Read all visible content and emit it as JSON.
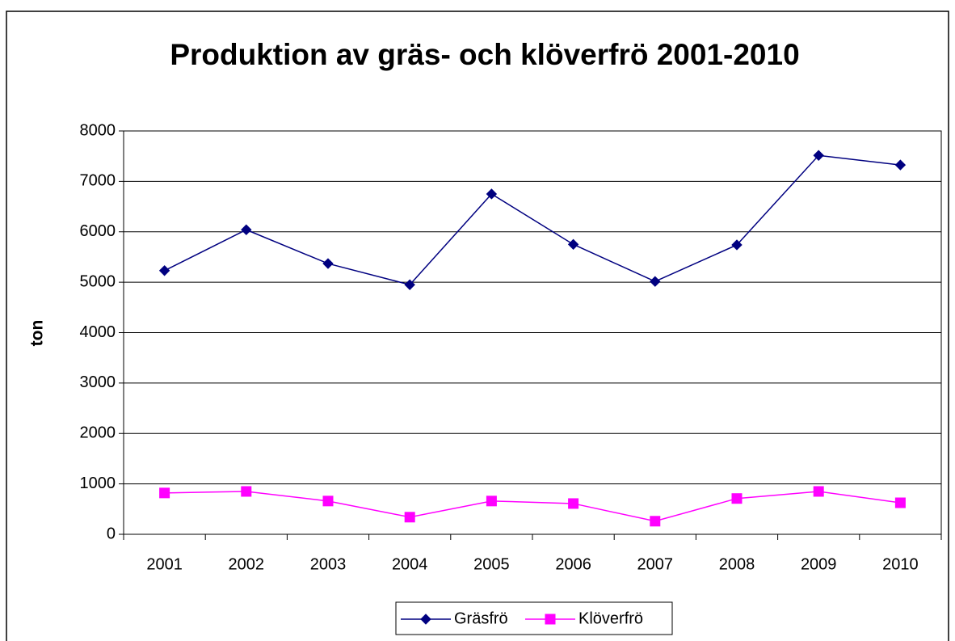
{
  "chart_data": {
    "type": "line",
    "title": "Produktion av gräs- och klöverfrö 2001-2010",
    "y_label": "ton",
    "categories": [
      "2001",
      "2002",
      "2003",
      "2004",
      "2005",
      "2006",
      "2007",
      "2008",
      "2009",
      "2010"
    ],
    "series": [
      {
        "name": "Gräsfrö",
        "color": "#000080",
        "marker": "diamond",
        "values": [
          5230,
          6040,
          5370,
          4950,
          6750,
          5750,
          5015,
          5740,
          7515,
          7325
        ]
      },
      {
        "name": "Klöverfrö",
        "color": "#ff00ff",
        "marker": "square",
        "values": [
          820,
          850,
          660,
          340,
          660,
          610,
          260,
          710,
          850,
          625
        ]
      }
    ],
    "ylim": [
      0,
      8000
    ],
    "yticks": [
      0,
      1000,
      2000,
      3000,
      4000,
      5000,
      6000,
      7000,
      8000
    ],
    "grid": true,
    "legend": "bottom"
  }
}
